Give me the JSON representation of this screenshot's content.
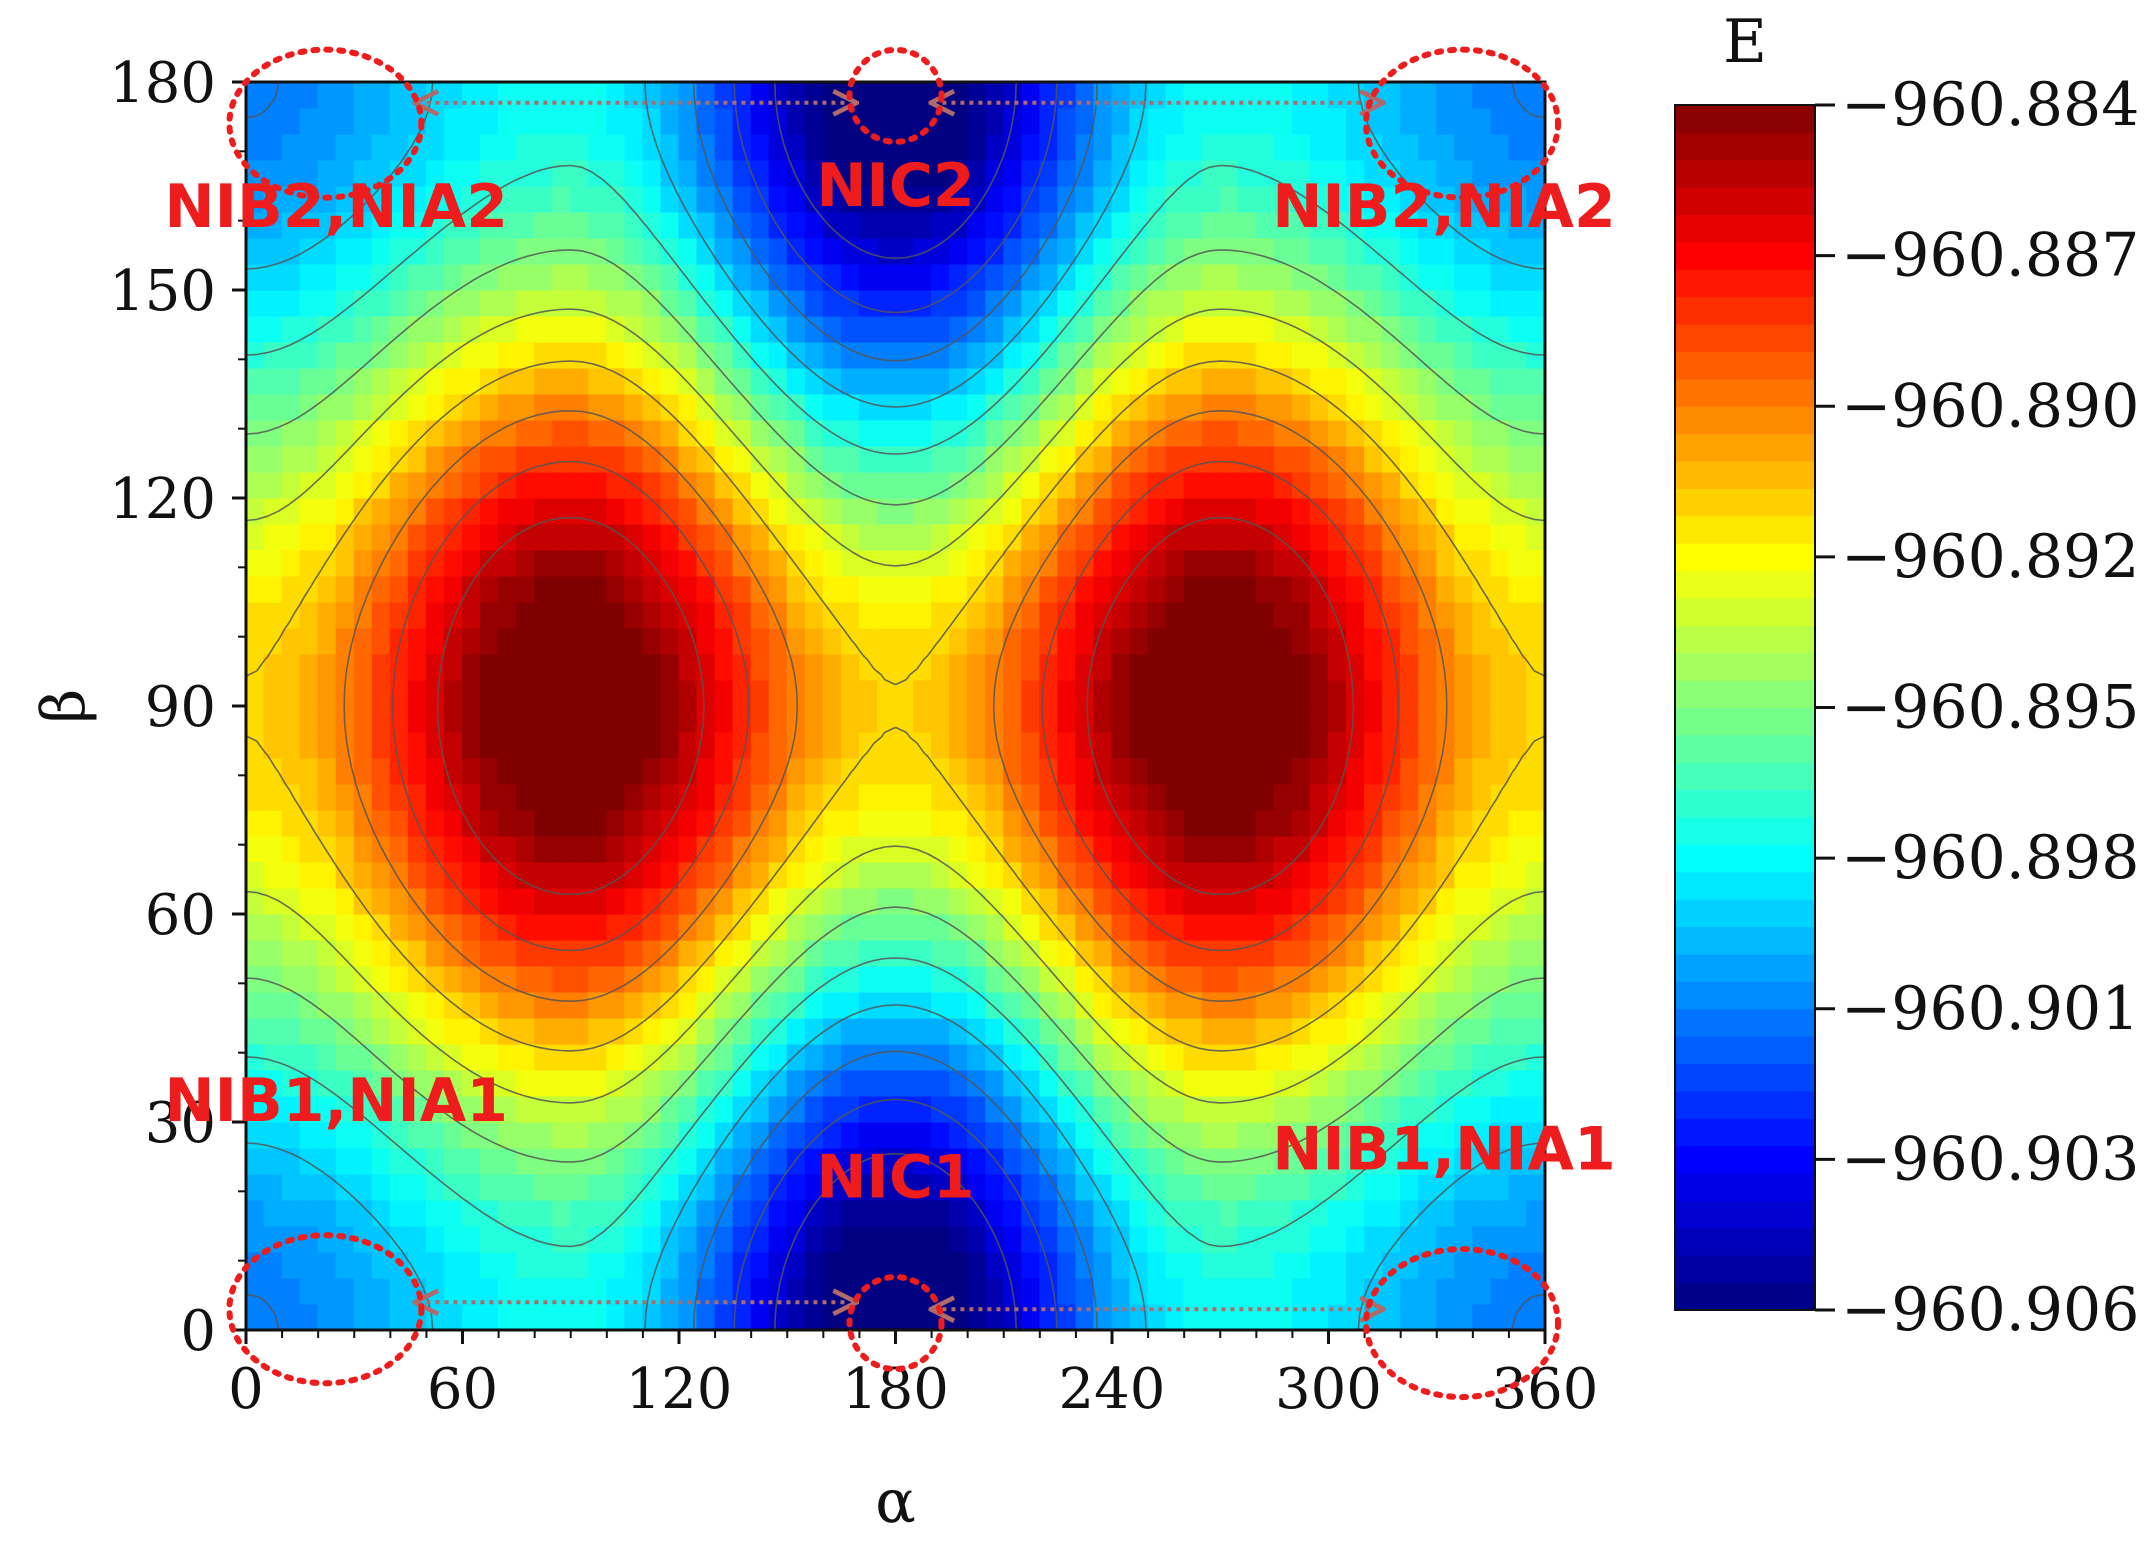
{
  "chart_data": {
    "type": "heatmap",
    "title": "",
    "xlabel": "α",
    "ylabel": "β",
    "xlim": [
      0,
      360
    ],
    "ylim": [
      0,
      180
    ],
    "x_ticks": [
      0,
      60,
      120,
      180,
      240,
      300,
      360
    ],
    "y_ticks": [
      0,
      30,
      60,
      90,
      120,
      150,
      180
    ],
    "x_tick_labels": [
      "0",
      "60",
      "120",
      "180",
      "240",
      "300",
      "360"
    ],
    "y_tick_labels": [
      "0",
      "30",
      "60",
      "90",
      "120",
      "150",
      "180"
    ],
    "colorbar": {
      "label": "E",
      "min": -960.906,
      "max": -960.884,
      "tick_values": [
        -960.884,
        -960.887,
        -960.89,
        -960.892,
        -960.895,
        -960.898,
        -960.901,
        -960.903,
        -960.906
      ],
      "tick_labels": [
        "−960.884",
        "−960.887",
        "−960.890",
        "−960.892",
        "−960.895",
        "−960.898",
        "−960.901",
        "−960.903",
        "−960.906"
      ]
    },
    "contour_levels": 12,
    "extrema": [
      {
        "kind": "max",
        "alpha": 90,
        "beta": 90,
        "value": -960.8845
      },
      {
        "kind": "max",
        "alpha": 270,
        "beta": 90,
        "value": -960.8845
      },
      {
        "kind": "min",
        "alpha": 180,
        "beta": 0,
        "value": -960.9055
      },
      {
        "kind": "min",
        "alpha": 180,
        "beta": 180,
        "value": -960.9055
      },
      {
        "kind": "min",
        "alpha": 25,
        "beta": 0,
        "value": -960.903
      },
      {
        "kind": "min",
        "alpha": 335,
        "beta": 0,
        "value": -960.903
      },
      {
        "kind": "min",
        "alpha": 30,
        "beta": 180,
        "value": -960.904
      },
      {
        "kind": "min",
        "alpha": 335,
        "beta": 180,
        "value": -960.904
      }
    ],
    "annotations": [
      {
        "label": "NIB2,NIA2",
        "alpha": 25,
        "beta": 162
      },
      {
        "label": "NIC2",
        "alpha": 180,
        "beta": 165
      },
      {
        "label": "NIB2,NIA2",
        "alpha": 332,
        "beta": 162
      },
      {
        "label": "NIB1,NIA1",
        "alpha": 25,
        "beta": 33
      },
      {
        "label": "NIC1",
        "alpha": 180,
        "beta": 22
      },
      {
        "label": "NIB1,NIA1",
        "alpha": 332,
        "beta": 26
      }
    ],
    "circled_regions": [
      {
        "alpha": 22,
        "beta": 174
      },
      {
        "alpha": 180,
        "beta": 178
      },
      {
        "alpha": 337,
        "beta": 174
      },
      {
        "alpha": 22,
        "beta": 3
      },
      {
        "alpha": 180,
        "beta": 1
      },
      {
        "alpha": 337,
        "beta": 1
      }
    ],
    "arrows": [
      {
        "from": [
          50,
          177
        ],
        "to": [
          166,
          177
        ]
      },
      {
        "from": [
          193,
          177
        ],
        "to": [
          312,
          177
        ]
      },
      {
        "from": [
          50,
          4
        ],
        "to": [
          166,
          4
        ]
      },
      {
        "from": [
          193,
          3
        ],
        "to": [
          312,
          3
        ]
      }
    ]
  }
}
